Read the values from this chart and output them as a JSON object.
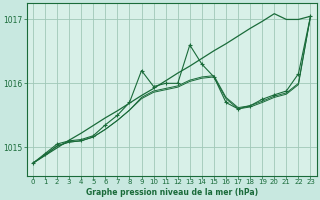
{
  "title": "Graphe pression niveau de la mer (hPa)",
  "background_color": "#c8e8e0",
  "plot_bg_color": "#d8f0e8",
  "grid_color": "#a0c8b8",
  "line_color": "#1a6b3a",
  "spine_color": "#1a6b3a",
  "xlim": [
    -0.5,
    23.5
  ],
  "ylim": [
    1014.55,
    1017.25
  ],
  "yticks": [
    1015,
    1016,
    1017
  ],
  "xticks": [
    0,
    1,
    2,
    3,
    4,
    5,
    6,
    7,
    8,
    9,
    10,
    11,
    12,
    13,
    14,
    15,
    16,
    17,
    18,
    19,
    20,
    21,
    22,
    23
  ],
  "series": {
    "trend": [
      1014.75,
      1014.87,
      1014.99,
      1015.11,
      1015.22,
      1015.34,
      1015.46,
      1015.57,
      1015.69,
      1015.81,
      1015.92,
      1016.04,
      1016.16,
      1016.27,
      1016.39,
      1016.51,
      1016.62,
      1016.74,
      1016.86,
      1016.97,
      1017.09,
      1017.0,
      1017.0,
      1017.05
    ],
    "main": [
      1014.75,
      1014.9,
      1015.05,
      1015.1,
      1015.12,
      1015.18,
      1015.35,
      1015.5,
      1015.7,
      1016.2,
      1015.95,
      1016.0,
      1016.0,
      1016.6,
      1016.3,
      1016.1,
      1015.7,
      1015.6,
      1015.65,
      1015.75,
      1015.82,
      1015.88,
      1016.15,
      1017.05
    ],
    "smooth1": [
      1014.75,
      1014.88,
      1015.02,
      1015.08,
      1015.1,
      1015.16,
      1015.28,
      1015.42,
      1015.58,
      1015.78,
      1015.88,
      1015.92,
      1015.96,
      1016.05,
      1016.1,
      1016.12,
      1015.78,
      1015.62,
      1015.65,
      1015.72,
      1015.8,
      1015.85,
      1016.0,
      1017.05
    ],
    "smooth2": [
      1014.75,
      1014.88,
      1015.02,
      1015.08,
      1015.1,
      1015.16,
      1015.28,
      1015.42,
      1015.58,
      1015.76,
      1015.86,
      1015.9,
      1015.94,
      1016.03,
      1016.08,
      1016.1,
      1015.76,
      1015.6,
      1015.63,
      1015.7,
      1015.78,
      1015.83,
      1015.98,
      1017.05
    ]
  }
}
